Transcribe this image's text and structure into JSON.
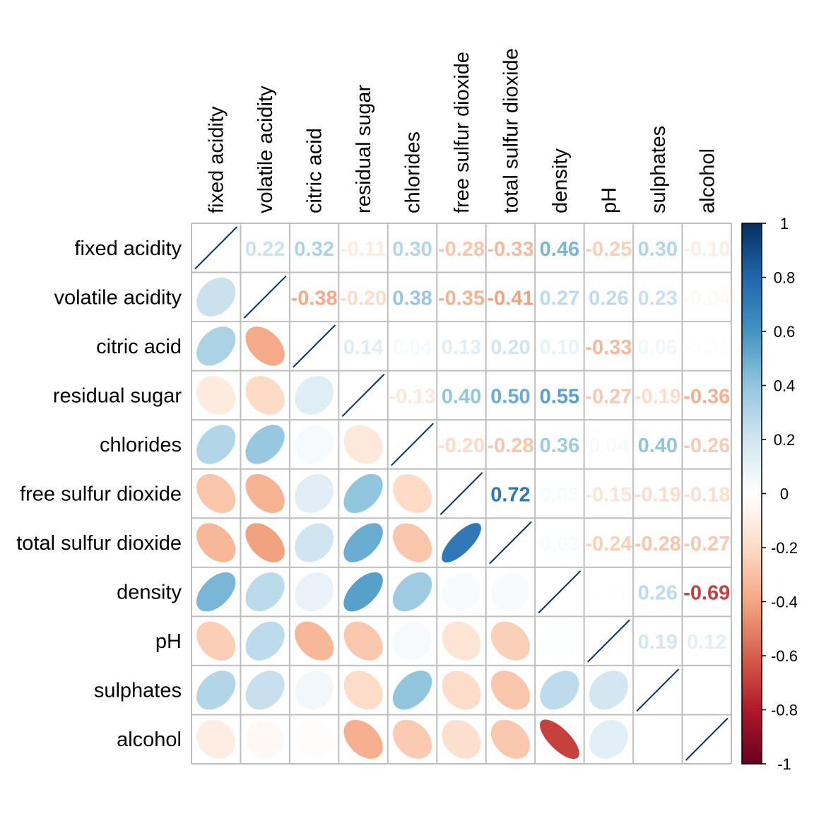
{
  "chart_data": {
    "type": "heatmap",
    "subtype": "correlation-matrix (mixed: lower ellipse, upper number)",
    "title": "",
    "variables": [
      "fixed acidity",
      "volatile acidity",
      "citric acid",
      "residual sugar",
      "chlorides",
      "free sulfur dioxide",
      "total sulfur dioxide",
      "density",
      "pH",
      "sulphates",
      "alcohol"
    ],
    "matrix": [
      [
        1.0,
        0.22,
        0.32,
        -0.11,
        0.3,
        -0.28,
        -0.33,
        0.46,
        -0.25,
        0.3,
        -0.1
      ],
      [
        0.22,
        1.0,
        -0.38,
        -0.2,
        0.38,
        -0.35,
        -0.41,
        0.27,
        0.26,
        0.23,
        -0.04
      ],
      [
        0.32,
        -0.38,
        1.0,
        0.14,
        0.04,
        0.13,
        0.2,
        0.1,
        -0.33,
        0.06,
        -0.01
      ],
      [
        -0.11,
        -0.2,
        0.14,
        1.0,
        -0.13,
        0.4,
        0.5,
        0.55,
        -0.27,
        -0.19,
        -0.36
      ],
      [
        0.3,
        0.38,
        0.04,
        -0.13,
        1.0,
        -0.2,
        -0.28,
        0.36,
        0.04,
        0.4,
        -0.26
      ],
      [
        -0.28,
        -0.35,
        0.13,
        0.4,
        -0.2,
        1.0,
        0.72,
        0.03,
        -0.15,
        -0.19,
        -0.18
      ],
      [
        -0.33,
        -0.41,
        0.2,
        0.5,
        -0.28,
        0.72,
        1.0,
        0.03,
        -0.24,
        -0.28,
        -0.27
      ],
      [
        0.46,
        0.27,
        0.1,
        0.55,
        0.36,
        0.03,
        0.03,
        1.0,
        0.01,
        0.26,
        -0.69
      ],
      [
        -0.25,
        0.26,
        -0.33,
        -0.27,
        0.04,
        -0.15,
        -0.24,
        0.01,
        1.0,
        0.19,
        0.12
      ],
      [
        0.3,
        0.23,
        0.06,
        -0.19,
        0.4,
        -0.19,
        -0.28,
        0.26,
        0.19,
        1.0,
        0.0
      ],
      [
        -0.1,
        -0.04,
        -0.01,
        -0.36,
        -0.26,
        -0.18,
        -0.27,
        -0.69,
        0.12,
        0.0,
        1.0
      ]
    ],
    "lower_method": "ellipse",
    "upper_method": "number",
    "diagonal": "line",
    "colorbar": {
      "range": [
        -1,
        1
      ],
      "ticks": [
        "1",
        "0.8",
        "0.6",
        "0.4",
        "0.2",
        "0",
        "-0.2",
        "-0.4",
        "-0.6",
        "-0.8",
        "-1"
      ],
      "palette": [
        "#67001F",
        "#B2182B",
        "#D6604D",
        "#F4A582",
        "#FDDBC7",
        "#FFFFFF",
        "#D1E5F0",
        "#92C5DE",
        "#4393C3",
        "#2166AC",
        "#053061"
      ],
      "placement": "right"
    },
    "grid_color": "#BEBEBE",
    "diagonal_color": "#053061"
  }
}
